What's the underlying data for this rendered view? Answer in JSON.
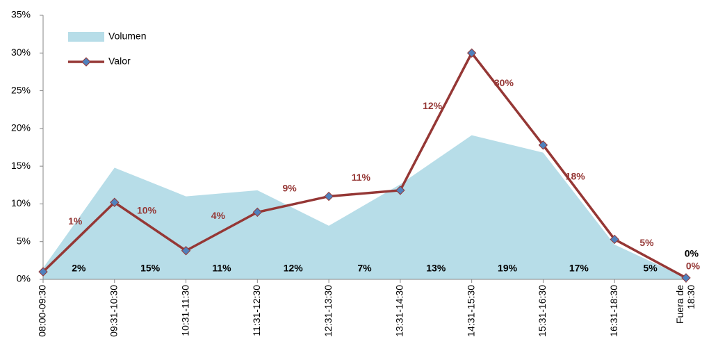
{
  "chart_data": {
    "type": "area-line",
    "categories": [
      "08:00-09:30",
      "09:31-10:30",
      "10:31-11:30",
      "11:31-12:30",
      "12:31-13:30",
      "13:31-14:30",
      "14:31-15:30",
      "15:31-16:30",
      "16:31-18:30",
      "Fuera de 18:30"
    ],
    "series": [
      {
        "name": "Volumen",
        "kind": "area",
        "color": "#b7dde8",
        "values": [
          1.5,
          14.8,
          11,
          11.8,
          7.1,
          12.6,
          19.1,
          16.8,
          4.6,
          0.2
        ],
        "value_labels": [
          "2%",
          "15%",
          "11%",
          "12%",
          "7%",
          "13%",
          "19%",
          "17%",
          "5%",
          "0%"
        ],
        "label_color": "#000000"
      },
      {
        "name": "Valor",
        "kind": "line",
        "color": "#953735",
        "marker_color": "#4f81bd",
        "values": [
          1.0,
          10.2,
          3.8,
          8.9,
          11,
          11.8,
          30,
          17.8,
          5.3,
          0.2
        ],
        "value_labels": [
          "1%",
          "10%",
          "4%",
          "9%",
          "11%",
          "12%",
          "30%",
          "18%",
          "5%",
          "0%"
        ],
        "label_color": "#953735"
      }
    ],
    "ylim": [
      0,
      35
    ],
    "yticks": [
      {
        "value": 0,
        "label": "0%"
      },
      {
        "value": 5,
        "label": "5%"
      },
      {
        "value": 10,
        "label": "10%"
      },
      {
        "value": 15,
        "label": "15%"
      },
      {
        "value": 20,
        "label": "20%"
      },
      {
        "value": 25,
        "label": "25%"
      },
      {
        "value": 30,
        "label": "30%"
      },
      {
        "value": 35,
        "label": "35%"
      }
    ],
    "grid": false,
    "legend": "top-left"
  }
}
